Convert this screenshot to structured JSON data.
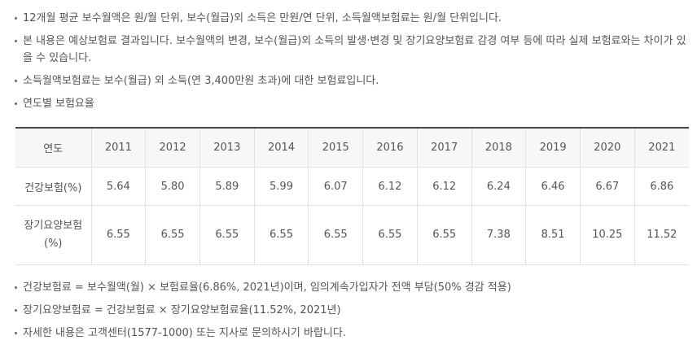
{
  "top_notes": [
    "12개월 평균 보수월액은 원/월 단위, 보수(월급)외 소득은 만원/연 단위, 소득월액보험료는 원/월 단위입니다.",
    "본 내용은 예상보험료 결과입니다. 보수월액의 변경, 보수(월급)외 소득의 발생·변경 및 장기요양보험료 감경 여부 등에 따라 실제 보험료와는 차이가 있을 수 있습니다.",
    "소득월액보험료는 보수(월급) 외 소득(연 3,400만원 초과)에 대한 보험료입니다.",
    "연도별 보험요율"
  ],
  "rate_table": {
    "header_label": "연도",
    "years": [
      "2011",
      "2012",
      "2013",
      "2014",
      "2015",
      "2016",
      "2017",
      "2018",
      "2019",
      "2020",
      "2021"
    ],
    "rows": [
      {
        "label": "건강보험(%)",
        "values": [
          "5.64",
          "5.80",
          "5.89",
          "5.99",
          "6.07",
          "6.12",
          "6.12",
          "6.24",
          "6.46",
          "6.67",
          "6.86"
        ]
      },
      {
        "label": "장기요양보험(%)",
        "label_line1": "장기요양보험",
        "label_line2": "(%)",
        "values": [
          "6.55",
          "6.55",
          "6.55",
          "6.55",
          "6.55",
          "6.55",
          "6.55",
          "7.38",
          "8.51",
          "10.25",
          "11.52"
        ]
      }
    ]
  },
  "bottom_notes": [
    "건강보험료 = 보수월액(월) × 보험료율(6.86%, 2021년)이며, 임의계속가입자가 전액 부담(50% 경감 적용)",
    "장기요양보험료 = 건강보험료 × 장기요양보험료율(11.52%, 2021년)",
    "자세한 내용은 고객센터(1577-1000) 또는 지사로 문의하시기 바랍니다."
  ],
  "colors": {
    "text": "#555555",
    "table_top_border": "#444444",
    "grid_line": "#e1e1e1",
    "header_bg": "#f7f7f7"
  }
}
